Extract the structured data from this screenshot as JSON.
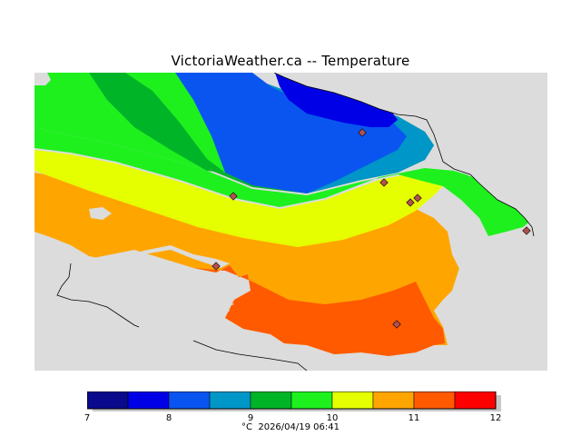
{
  "title": "VictoriaWeather.ca -- Temperature",
  "map": {
    "sea_color": "#dcdcdc",
    "coast_color": "#000000",
    "bands": [
      {
        "range": "7-7.5",
        "color": "#0a0a8c"
      },
      {
        "range": "7.5-8",
        "color": "#0000e6"
      },
      {
        "range": "8-8.5",
        "color": "#0a55f0"
      },
      {
        "range": "8.5-9",
        "color": "#0096c8"
      },
      {
        "range": "9-9.5",
        "color": "#00b428"
      },
      {
        "range": "9.5-10",
        "color": "#1ef01e"
      },
      {
        "range": "10-10.5",
        "color": "#e6ff00"
      },
      {
        "range": "10.5-11",
        "color": "#ffa500"
      },
      {
        "range": "11-11.5",
        "color": "#ff5a00"
      },
      {
        "range": "11.5-12",
        "color": "#ff0000"
      }
    ],
    "station_marker_color": "#b05050"
  },
  "legend": {
    "tick_labels": [
      "7",
      "8",
      "9",
      "10",
      "11",
      "12"
    ],
    "unit": "°C",
    "timestamp": "2026/04/19 06:41"
  }
}
